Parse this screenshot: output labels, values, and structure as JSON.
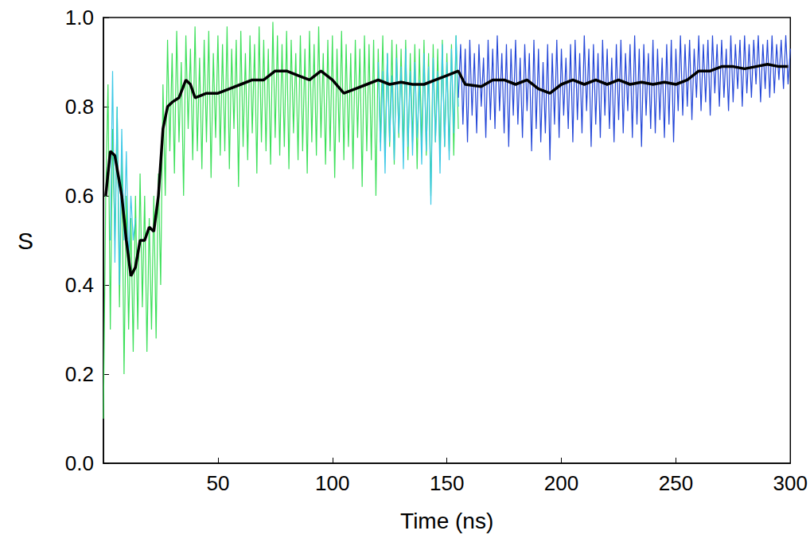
{
  "chart_data": {
    "type": "line",
    "x_label": "Time (ns)",
    "y_label": "S",
    "xlim": [
      0,
      300
    ],
    "xticks": [
      50,
      100,
      150,
      200,
      250,
      300
    ],
    "ylim": [
      0,
      1
    ],
    "yticks": [
      {
        "value": 0,
        "label": "0.0"
      },
      {
        "value": 0.2,
        "label": "0.2"
      },
      {
        "value": 0.4,
        "label": "0.4"
      },
      {
        "value": 0.6,
        "label": "0.6"
      },
      {
        "value": 0.8,
        "label": "0.8"
      },
      {
        "value": 1,
        "label": "1.0"
      }
    ],
    "grid": false,
    "series": [
      {
        "color": "#3de05a",
        "line_style": "solid",
        "x": [
          0,
          1,
          2,
          3,
          4,
          5,
          6,
          7,
          8,
          9,
          10,
          11,
          12,
          13,
          14,
          15,
          16,
          17,
          18,
          19,
          20,
          21,
          22,
          23,
          24,
          25,
          26,
          27,
          28,
          29,
          30,
          31,
          32,
          33,
          34,
          35,
          36,
          37,
          38,
          39,
          40,
          41,
          42,
          43,
          44,
          45,
          46,
          47,
          48,
          49,
          50,
          51,
          52,
          53,
          54,
          55,
          56,
          57,
          58,
          59,
          60,
          61,
          62,
          63,
          64,
          65,
          66,
          67,
          68,
          69,
          70,
          71,
          72,
          73,
          74,
          75,
          76,
          77,
          78,
          79,
          80,
          81,
          82,
          83,
          84,
          85,
          86,
          87,
          88,
          89,
          90,
          91,
          92,
          93,
          94,
          95,
          96,
          97,
          98,
          99,
          100,
          101,
          102,
          103,
          104,
          105,
          106,
          107,
          108,
          109,
          110,
          111,
          112,
          113,
          114,
          115,
          116,
          117,
          118,
          119,
          120,
          121,
          122,
          123,
          124,
          125,
          126,
          127,
          128,
          129,
          130,
          131,
          132,
          133,
          134,
          135,
          136,
          137,
          138,
          139,
          140,
          141,
          142,
          143,
          144,
          145,
          146,
          147,
          148,
          149,
          150,
          151,
          152,
          153,
          154,
          155
        ],
        "values": [
          0.1,
          0.6,
          0.85,
          0.3,
          0.75,
          0.5,
          0.8,
          0.35,
          0.7,
          0.2,
          0.6,
          0.3,
          0.55,
          0.25,
          0.6,
          0.3,
          0.65,
          0.35,
          0.6,
          0.25,
          0.55,
          0.3,
          0.6,
          0.28,
          0.65,
          0.4,
          0.85,
          0.6,
          0.95,
          0.7,
          0.92,
          0.65,
          0.97,
          0.72,
          0.9,
          0.6,
          0.96,
          0.75,
          0.93,
          0.68,
          0.98,
          0.7,
          0.91,
          0.66,
          0.95,
          0.72,
          0.97,
          0.64,
          0.92,
          0.73,
          0.96,
          0.69,
          0.94,
          0.7,
          0.98,
          0.66,
          0.93,
          0.75,
          0.95,
          0.62,
          0.97,
          0.71,
          0.92,
          0.68,
          0.96,
          0.74,
          0.94,
          0.65,
          0.98,
          0.72,
          0.95,
          0.7,
          0.93,
          0.67,
          0.99,
          0.73,
          0.96,
          0.69,
          0.94,
          0.71,
          0.97,
          0.66,
          0.95,
          0.74,
          0.92,
          0.68,
          0.96,
          0.7,
          0.93,
          0.65,
          0.97,
          0.72,
          0.94,
          0.69,
          0.98,
          0.73,
          0.92,
          0.67,
          0.95,
          0.7,
          0.96,
          0.64,
          0.93,
          0.72,
          0.97,
          0.68,
          0.94,
          0.71,
          0.92,
          0.66,
          0.95,
          0.73,
          0.93,
          0.62,
          0.96,
          0.7,
          0.94,
          0.68,
          0.95,
          0.6,
          0.93,
          0.72,
          0.96,
          0.69,
          0.92,
          0.71,
          0.95,
          0.67,
          0.94,
          0.73,
          0.93,
          0.7,
          0.95,
          0.68,
          0.92,
          0.72,
          0.94,
          0.66,
          0.93,
          0.71,
          0.95,
          0.69,
          0.92,
          0.6,
          0.94,
          0.72,
          0.93,
          0.68,
          0.95,
          0.71,
          0.92,
          0.7,
          0.94,
          0.69,
          0.96,
          0.75
        ]
      },
      {
        "color": "#3cc8e6",
        "line_style": "solid",
        "x": [
          3,
          4,
          5,
          6,
          7,
          8,
          9,
          10,
          11,
          12,
          13,
          14,
          15,
          120,
          121,
          122,
          123,
          124,
          125,
          126,
          127,
          128,
          129,
          130,
          131,
          132,
          133,
          134,
          135,
          136,
          137,
          138,
          139,
          140,
          141,
          142,
          143,
          144,
          145,
          146,
          147,
          148,
          149,
          150,
          151,
          152,
          153,
          154,
          155
        ],
        "values": [
          0.5,
          0.88,
          0.45,
          0.8,
          0.4,
          0.75,
          0.5,
          0.7,
          0.45,
          0.6,
          0.5,
          0.55,
          null,
          0.9,
          0.7,
          0.88,
          0.65,
          0.92,
          0.72,
          0.87,
          0.68,
          0.91,
          0.74,
          0.89,
          0.66,
          0.93,
          0.71,
          0.88,
          0.69,
          0.9,
          0.73,
          0.86,
          0.67,
          0.92,
          0.7,
          0.89,
          0.58,
          0.91,
          0.72,
          0.88,
          0.65,
          0.94,
          0.71,
          0.9,
          0.68,
          0.93,
          0.74,
          0.96,
          0.8
        ]
      },
      {
        "color": "#2447d8",
        "line_style": "solid",
        "x": [
          155,
          156,
          157,
          158,
          159,
          160,
          161,
          162,
          163,
          164,
          165,
          166,
          167,
          168,
          169,
          170,
          171,
          172,
          173,
          174,
          175,
          176,
          177,
          178,
          179,
          180,
          181,
          182,
          183,
          184,
          185,
          186,
          187,
          188,
          189,
          190,
          191,
          192,
          193,
          194,
          195,
          196,
          197,
          198,
          199,
          200,
          201,
          202,
          203,
          204,
          205,
          206,
          207,
          208,
          209,
          210,
          211,
          212,
          213,
          214,
          215,
          216,
          217,
          218,
          219,
          220,
          221,
          222,
          223,
          224,
          225,
          226,
          227,
          228,
          229,
          230,
          231,
          232,
          233,
          234,
          235,
          236,
          237,
          238,
          239,
          240,
          241,
          242,
          243,
          244,
          245,
          246,
          247,
          248,
          249,
          250,
          251,
          252,
          253,
          254,
          255,
          256,
          257,
          258,
          259,
          260,
          261,
          262,
          263,
          264,
          265,
          266,
          267,
          268,
          269,
          270,
          271,
          272,
          273,
          274,
          275,
          276,
          277,
          278,
          279,
          280,
          281,
          282,
          283,
          284,
          285,
          286,
          287,
          288,
          289,
          290,
          291,
          292,
          293,
          294,
          295,
          296,
          297,
          298,
          299,
          300
        ],
        "values": [
          0.82,
          0.94,
          0.76,
          0.93,
          0.72,
          0.95,
          0.78,
          0.92,
          0.74,
          0.94,
          0.8,
          0.91,
          0.73,
          0.95,
          0.77,
          0.93,
          0.75,
          0.96,
          0.79,
          0.92,
          0.74,
          0.94,
          0.71,
          0.93,
          0.78,
          0.95,
          0.76,
          0.91,
          0.73,
          0.94,
          0.79,
          0.92,
          0.7,
          0.95,
          0.75,
          0.93,
          0.72,
          0.9,
          0.74,
          0.94,
          0.68,
          0.92,
          0.76,
          0.95,
          0.73,
          0.93,
          0.78,
          0.91,
          0.75,
          0.94,
          0.72,
          0.95,
          0.77,
          0.92,
          0.74,
          0.96,
          0.79,
          0.93,
          0.71,
          0.94,
          0.76,
          0.92,
          0.73,
          0.95,
          0.78,
          0.93,
          0.75,
          0.91,
          0.72,
          0.94,
          0.77,
          0.95,
          0.74,
          0.92,
          0.79,
          0.94,
          0.73,
          0.96,
          0.76,
          0.93,
          0.71,
          0.94,
          0.78,
          0.92,
          0.75,
          0.95,
          0.74,
          0.93,
          0.77,
          0.91,
          0.73,
          0.94,
          0.76,
          0.95,
          0.72,
          0.93,
          0.79,
          0.96,
          0.78,
          0.94,
          0.8,
          0.95,
          0.77,
          0.93,
          0.82,
          0.96,
          0.79,
          0.94,
          0.81,
          0.95,
          0.78,
          0.96,
          0.83,
          0.94,
          0.8,
          0.95,
          0.82,
          0.93,
          0.79,
          0.96,
          0.81,
          0.94,
          0.84,
          0.95,
          0.8,
          0.96,
          0.83,
          0.94,
          0.82,
          0.95,
          0.85,
          0.96,
          0.81,
          0.94,
          0.84,
          0.95,
          0.82,
          0.96,
          0.83,
          0.94,
          0.86,
          0.95,
          0.84,
          0.96,
          0.85,
          0.93
        ]
      },
      {
        "color": "#000000",
        "line_style": "bold",
        "x": [
          1,
          3,
          5,
          8,
          10,
          12,
          14,
          16,
          18,
          20,
          22,
          24,
          26,
          28,
          30,
          33,
          36,
          38,
          40,
          45,
          50,
          55,
          60,
          65,
          70,
          75,
          80,
          85,
          90,
          95,
          100,
          105,
          110,
          115,
          120,
          125,
          130,
          135,
          140,
          145,
          150,
          155,
          158,
          165,
          170,
          175,
          180,
          185,
          190,
          195,
          200,
          205,
          210,
          215,
          220,
          225,
          230,
          235,
          240,
          245,
          250,
          255,
          260,
          265,
          270,
          275,
          280,
          285,
          290,
          295,
          299
        ],
        "values": [
          0.6,
          0.7,
          0.69,
          0.6,
          0.5,
          0.42,
          0.44,
          0.5,
          0.5,
          0.53,
          0.52,
          0.6,
          0.75,
          0.8,
          0.81,
          0.82,
          0.86,
          0.85,
          0.82,
          0.83,
          0.83,
          0.84,
          0.85,
          0.86,
          0.86,
          0.88,
          0.88,
          0.87,
          0.86,
          0.88,
          0.86,
          0.83,
          0.84,
          0.85,
          0.86,
          0.85,
          0.855,
          0.85,
          0.85,
          0.86,
          0.87,
          0.88,
          0.85,
          0.845,
          0.86,
          0.86,
          0.85,
          0.86,
          0.84,
          0.83,
          0.85,
          0.86,
          0.85,
          0.86,
          0.85,
          0.86,
          0.85,
          0.855,
          0.85,
          0.855,
          0.85,
          0.86,
          0.88,
          0.88,
          0.89,
          0.89,
          0.885,
          0.89,
          0.895,
          0.89,
          0.89
        ]
      }
    ]
  }
}
